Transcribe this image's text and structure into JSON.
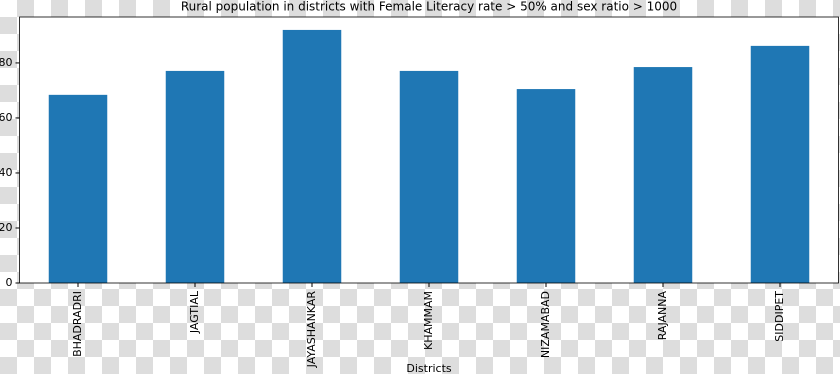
{
  "chart_data": {
    "type": "bar",
    "title": "Rural population in districts with Female Literacy rate > 50% and sex ratio > 1000",
    "x_label": "Districts",
    "categories": [
      "BHADRADRI",
      "JAGTIAL",
      "JAYASHANKAR",
      "KHAMMAM",
      "NIZAMABAD",
      "RAJANNA",
      "SIDDIPET"
    ],
    "values": [
      68.4,
      77.1,
      92.0,
      77.1,
      70.5,
      78.5,
      86.2
    ],
    "color": "#1f77b4",
    "ylim": [
      0,
      96.7
    ],
    "yticks": [
      0,
      20,
      40,
      60,
      80
    ],
    "grid": false
  }
}
